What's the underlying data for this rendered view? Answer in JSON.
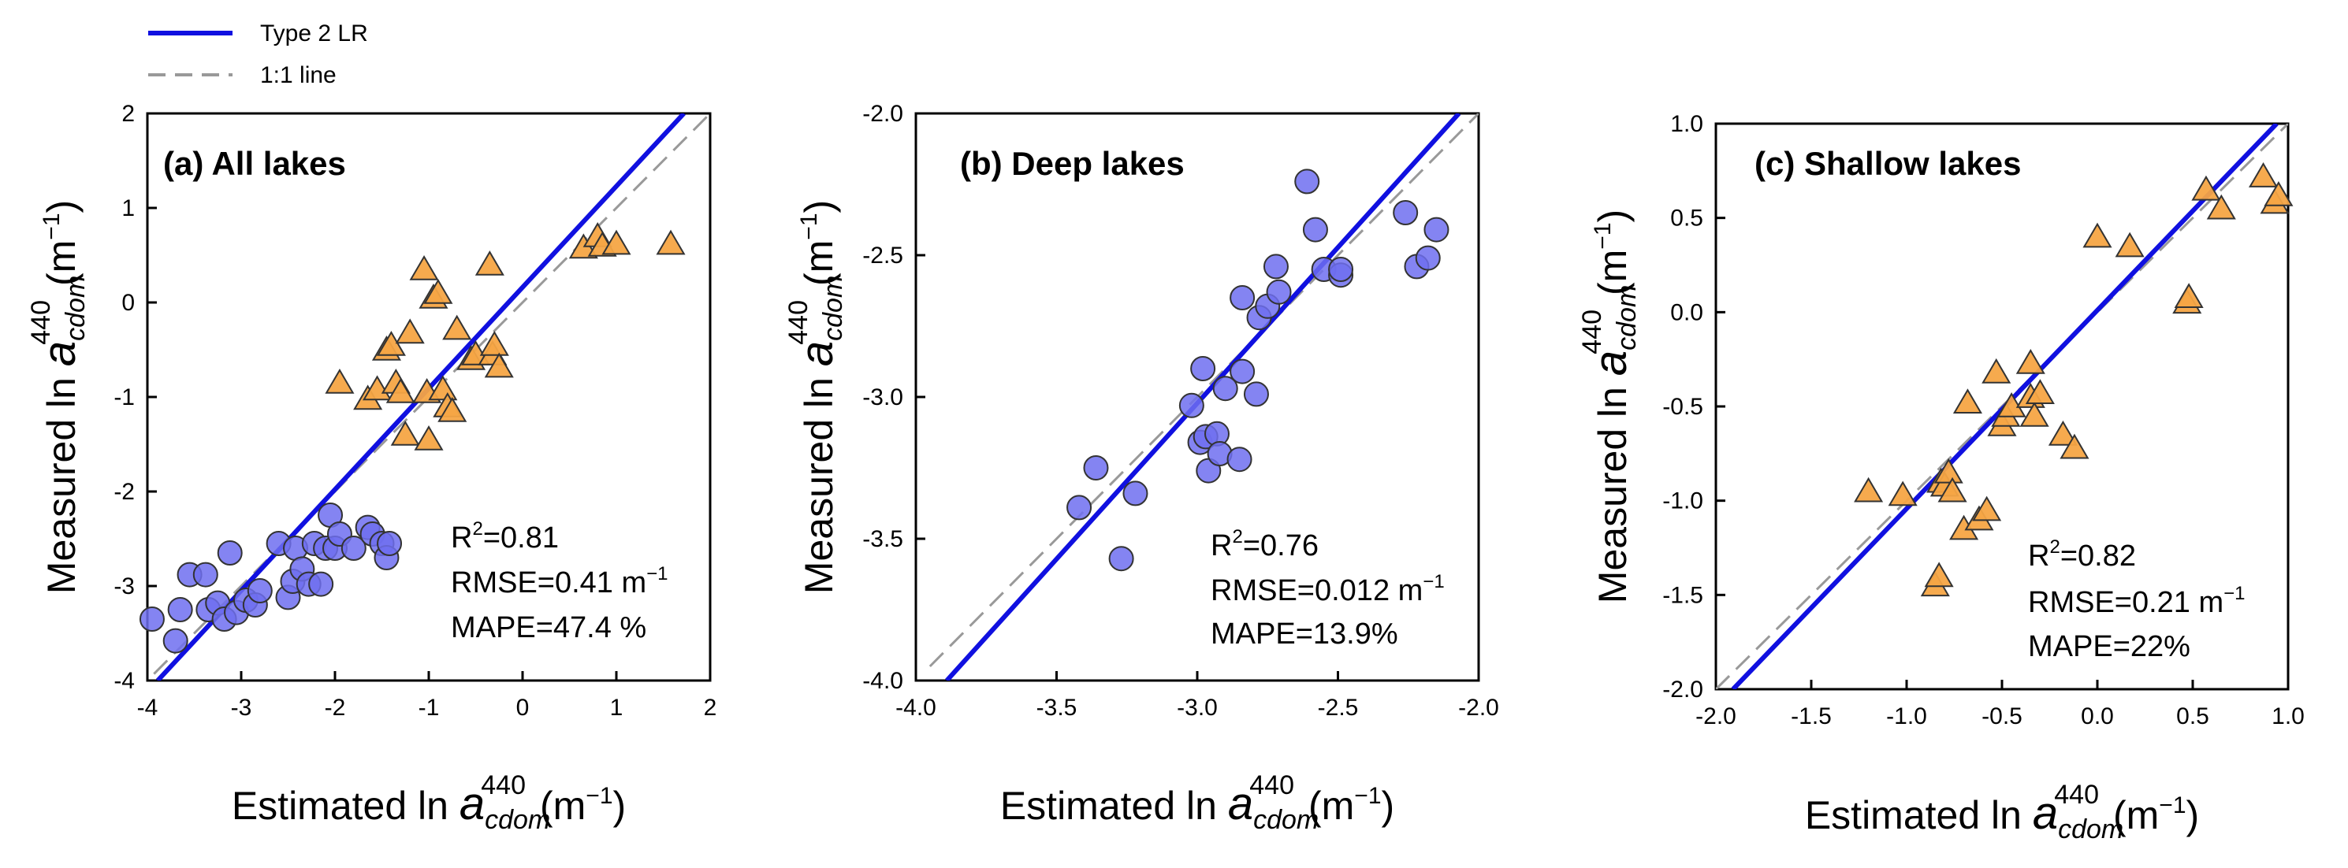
{
  "legend": {
    "type2": {
      "label": "Type 2 LR",
      "color": "#1010e0"
    },
    "oneone": {
      "label": "1:1 line",
      "color": "#999999"
    }
  },
  "colors": {
    "lake_a": "#6f6ff0",
    "lake_b": "#f5a545",
    "edge": "#333333"
  },
  "chart_data": [
    {
      "type": "scatter",
      "title": "(a) All lakes",
      "xlabel": "Estimated ln a_cdom^440 (m^-1)",
      "ylabel": "Measured ln a_cdom^440 (m^-1)",
      "xlim": [
        -4,
        2
      ],
      "ylim": [
        -4,
        2
      ],
      "xticks": [
        -4,
        -3,
        -2,
        -1,
        0,
        1,
        2
      ],
      "yticks": [
        -4,
        -3,
        -2,
        -1,
        0,
        1,
        2
      ],
      "xtick_labels": [
        "-4",
        "-3",
        "-2",
        "-1",
        "0",
        "1",
        "2"
      ],
      "ytick_labels": [
        "-4",
        "-3",
        "-2",
        "-1",
        "0",
        "1",
        "2"
      ],
      "stats": {
        "r2_value": "=0.81",
        "rmse_value": "RMSE=0.41 m",
        "mape": "MAPE=47.4 %"
      },
      "fit_line": {
        "name": "Type 2 LR",
        "x": [
          -3.89,
          1.72
        ],
        "y": [
          -4.0,
          2.0
        ]
      },
      "one_to_one": {
        "name": "1:1 line",
        "x": [
          -3.93,
          2.0
        ],
        "y": [
          -3.93,
          2.0
        ]
      },
      "series": [
        {
          "name": "circles",
          "marker": "circle",
          "points": [
            [
              -3.95,
              -3.35
            ],
            [
              -3.7,
              -3.58
            ],
            [
              -3.65,
              -3.25
            ],
            [
              -3.55,
              -2.88
            ],
            [
              -3.38,
              -2.88
            ],
            [
              -3.35,
              -3.25
            ],
            [
              -3.25,
              -3.18
            ],
            [
              -3.18,
              -3.35
            ],
            [
              -3.12,
              -2.65
            ],
            [
              -3.05,
              -3.28
            ],
            [
              -2.95,
              -3.15
            ],
            [
              -2.85,
              -3.2
            ],
            [
              -2.8,
              -3.05
            ],
            [
              -2.6,
              -2.55
            ],
            [
              -2.5,
              -3.12
            ],
            [
              -2.45,
              -2.95
            ],
            [
              -2.42,
              -2.6
            ],
            [
              -2.35,
              -2.82
            ],
            [
              -2.28,
              -2.98
            ],
            [
              -2.22,
              -2.55
            ],
            [
              -2.15,
              -2.98
            ],
            [
              -2.1,
              -2.6
            ],
            [
              -2.05,
              -2.25
            ],
            [
              -2.0,
              -2.6
            ],
            [
              -1.95,
              -2.45
            ],
            [
              -1.8,
              -2.6
            ],
            [
              -1.65,
              -2.38
            ],
            [
              -1.6,
              -2.45
            ],
            [
              -1.5,
              -2.55
            ],
            [
              -1.45,
              -2.7
            ],
            [
              -1.42,
              -2.55
            ]
          ]
        },
        {
          "name": "triangles",
          "marker": "triangle",
          "points": [
            [
              -1.95,
              -0.85
            ],
            [
              -1.65,
              -1.02
            ],
            [
              -1.55,
              -0.92
            ],
            [
              -1.45,
              -0.5
            ],
            [
              -1.4,
              -0.45
            ],
            [
              -1.35,
              -0.85
            ],
            [
              -1.3,
              -0.95
            ],
            [
              -1.25,
              -1.4
            ],
            [
              -1.2,
              -0.32
            ],
            [
              -1.05,
              0.35
            ],
            [
              -1.02,
              -0.95
            ],
            [
              -1.0,
              -1.45
            ],
            [
              -0.95,
              0.05
            ],
            [
              -0.9,
              0.1
            ],
            [
              -0.85,
              -0.92
            ],
            [
              -0.8,
              -1.1
            ],
            [
              -0.75,
              -1.15
            ],
            [
              -0.7,
              -0.28
            ],
            [
              -0.55,
              -0.6
            ],
            [
              -0.5,
              -0.55
            ],
            [
              -0.35,
              0.4
            ],
            [
              -0.32,
              -0.55
            ],
            [
              -0.3,
              -0.45
            ],
            [
              -0.25,
              -0.68
            ],
            [
              0.65,
              0.58
            ],
            [
              0.8,
              0.7
            ],
            [
              0.85,
              0.6
            ],
            [
              1.0,
              0.62
            ],
            [
              1.58,
              0.62
            ]
          ]
        }
      ]
    },
    {
      "type": "scatter",
      "title": "(b) Deep lakes",
      "xlabel": "Estimated ln a_cdom^440 (m^-1)",
      "ylabel": "Measured ln a_cdom^440 (m^-1)",
      "xlim": [
        -4.0,
        -2.0
      ],
      "ylim": [
        -4.0,
        -2.0
      ],
      "xticks": [
        -4.0,
        -3.5,
        -3.0,
        -2.5,
        -2.0
      ],
      "yticks": [
        -4.0,
        -3.5,
        -3.0,
        -2.5,
        -2.0
      ],
      "xtick_labels": [
        "-4.0",
        "-3.5",
        "-3.0",
        "-2.5",
        "-2.0"
      ],
      "ytick_labels": [
        "-4.0",
        "-3.5",
        "-3.0",
        "-2.5",
        "-2.0"
      ],
      "stats": {
        "r2_value": "=0.76",
        "rmse_value": "RMSE=0.012 m",
        "mape": "MAPE=13.9%"
      },
      "fit_line": {
        "name": "Type 2 LR",
        "x": [
          -3.89,
          -2.07
        ],
        "y": [
          -4.0,
          -2.0
        ]
      },
      "one_to_one": {
        "name": "1:1 line",
        "x": [
          -3.95,
          -2.0
        ],
        "y": [
          -3.95,
          -2.0
        ]
      },
      "series": [
        {
          "name": "circles",
          "marker": "circle",
          "points": [
            [
              -3.42,
              -3.39
            ],
            [
              -3.36,
              -3.25
            ],
            [
              -3.27,
              -3.57
            ],
            [
              -3.22,
              -3.34
            ],
            [
              -3.02,
              -3.03
            ],
            [
              -2.99,
              -3.16
            ],
            [
              -2.98,
              -2.9
            ],
            [
              -2.97,
              -3.14
            ],
            [
              -2.96,
              -3.26
            ],
            [
              -2.93,
              -3.13
            ],
            [
              -2.92,
              -3.2
            ],
            [
              -2.9,
              -2.97
            ],
            [
              -2.85,
              -3.22
            ],
            [
              -2.84,
              -2.91
            ],
            [
              -2.84,
              -2.65
            ],
            [
              -2.79,
              -2.99
            ],
            [
              -2.78,
              -2.72
            ],
            [
              -2.75,
              -2.68
            ],
            [
              -2.72,
              -2.54
            ],
            [
              -2.71,
              -2.63
            ],
            [
              -2.61,
              -2.24
            ],
            [
              -2.58,
              -2.41
            ],
            [
              -2.55,
              -2.55
            ],
            [
              -2.49,
              -2.57
            ],
            [
              -2.49,
              -2.55
            ],
            [
              -2.26,
              -2.35
            ],
            [
              -2.22,
              -2.54
            ],
            [
              -2.18,
              -2.51
            ],
            [
              -2.15,
              -2.41
            ]
          ]
        }
      ]
    },
    {
      "type": "scatter",
      "title": "(c) Shallow lakes",
      "xlabel": "Estimated ln a_cdom^440 (m^-1)",
      "ylabel": "Measured ln a_cdom^440 (m^-1)",
      "xlim": [
        -2.0,
        1.0
      ],
      "ylim": [
        -2.0,
        1.0
      ],
      "xticks": [
        -2.0,
        -1.5,
        -1.0,
        -0.5,
        0.0,
        0.5,
        1.0
      ],
      "yticks": [
        -2.0,
        -1.5,
        -1.0,
        -0.5,
        0.0,
        0.5,
        1.0
      ],
      "xtick_labels": [
        "-2.0",
        "-1.5",
        "-1.0",
        "-0.5",
        "0.0",
        "0.5",
        "1.0"
      ],
      "ytick_labels": [
        "-2.0",
        "-1.5",
        "-1.0",
        "-0.5",
        "0.0",
        "0.5",
        "1.0"
      ],
      "stats": {
        "r2_value": "=0.82",
        "rmse_value": "RMSE=0.21 m",
        "mape": "MAPE=22%"
      },
      "fit_line": {
        "name": "Type 2 LR",
        "x": [
          -1.91,
          0.94
        ],
        "y": [
          -2.0,
          1.0
        ]
      },
      "one_to_one": {
        "name": "1:1 line",
        "x": [
          -2.0,
          1.0
        ],
        "y": [
          -2.0,
          1.0
        ]
      },
      "series": [
        {
          "name": "triangles",
          "marker": "triangle",
          "points": [
            [
              -1.2,
              -0.95
            ],
            [
              -1.02,
              -0.97
            ],
            [
              -0.85,
              -1.45
            ],
            [
              -0.83,
              -1.4
            ],
            [
              -0.82,
              -0.9
            ],
            [
              -0.8,
              -0.92
            ],
            [
              -0.78,
              -0.85
            ],
            [
              -0.76,
              -0.95
            ],
            [
              -0.7,
              -1.15
            ],
            [
              -0.68,
              -0.48
            ],
            [
              -0.62,
              -1.1
            ],
            [
              -0.58,
              -1.05
            ],
            [
              -0.53,
              -0.32
            ],
            [
              -0.5,
              -0.6
            ],
            [
              -0.48,
              -0.55
            ],
            [
              -0.45,
              -0.5
            ],
            [
              -0.35,
              -0.27
            ],
            [
              -0.35,
              -0.45
            ],
            [
              -0.33,
              -0.55
            ],
            [
              -0.3,
              -0.43
            ],
            [
              -0.18,
              -0.65
            ],
            [
              -0.12,
              -0.72
            ],
            [
              0.0,
              0.4
            ],
            [
              0.17,
              0.35
            ],
            [
              0.47,
              0.05
            ],
            [
              0.48,
              0.08
            ],
            [
              0.57,
              0.65
            ],
            [
              0.65,
              0.55
            ],
            [
              0.87,
              0.72
            ],
            [
              0.93,
              0.58
            ],
            [
              0.95,
              0.62
            ]
          ]
        }
      ]
    }
  ]
}
